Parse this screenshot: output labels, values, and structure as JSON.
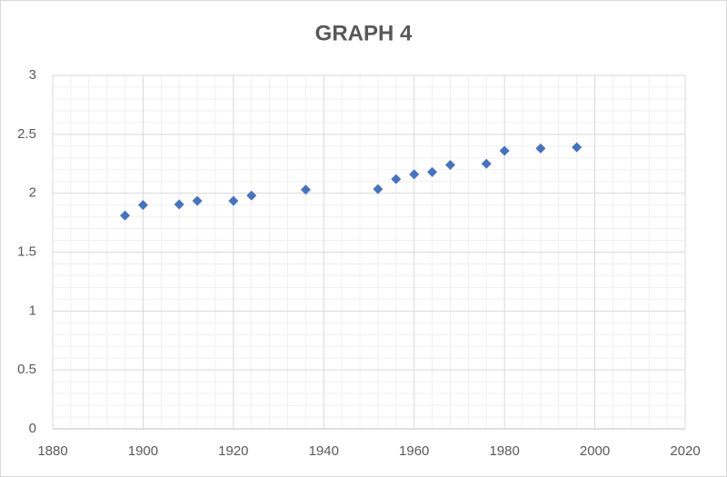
{
  "chart_data": {
    "type": "scatter",
    "title": "GRAPH 4",
    "x": [
      1896,
      1900,
      1908,
      1912,
      1920,
      1924,
      1936,
      1952,
      1956,
      1960,
      1964,
      1968,
      1976,
      1980,
      1988,
      1996
    ],
    "values": [
      1.81,
      1.9,
      1.905,
      1.935,
      1.935,
      1.98,
      2.03,
      2.035,
      2.12,
      2.16,
      2.18,
      2.24,
      2.25,
      2.36,
      2.38,
      2.39
    ],
    "color": "#4472c4",
    "xlim": [
      1880,
      2020
    ],
    "xticks": [
      1880,
      1900,
      1920,
      1940,
      1960,
      1980,
      2000,
      2020
    ],
    "ylim": [
      0,
      3
    ],
    "yticks": [
      0,
      0.5,
      1,
      1.5,
      2,
      2.5,
      3
    ],
    "grid": true,
    "minor_grid": true
  }
}
